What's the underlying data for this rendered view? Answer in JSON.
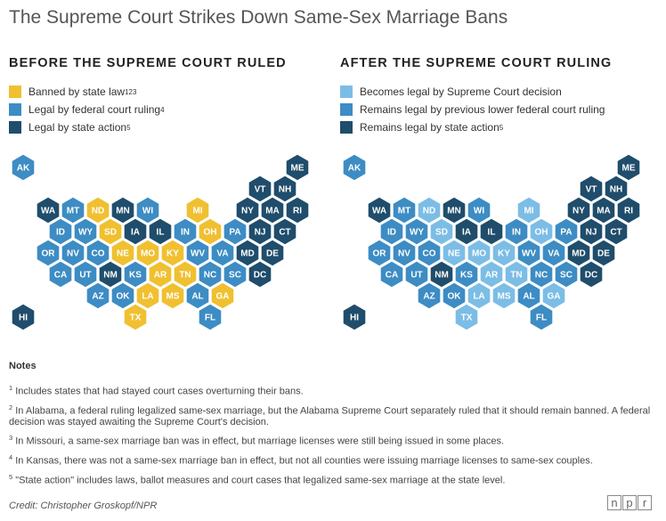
{
  "title": "The Supreme Court Strikes Down Same-Sex Marriage Bans",
  "colors": {
    "yellow": "#f0c030",
    "light_blue": "#7cbde6",
    "mid_blue": "#3d8cc4",
    "dark_blue": "#1f4d6b"
  },
  "before": {
    "heading": "BEFORE THE SUPREME COURT RULED",
    "legend": [
      {
        "label": "Banned by state law",
        "sup": "123",
        "color": "#f0c030"
      },
      {
        "label": "Legal by federal court ruling",
        "sup": "4",
        "color": "#3d8cc4"
      },
      {
        "label": "Legal by state action",
        "sup": "5",
        "color": "#1f4d6b"
      }
    ]
  },
  "after": {
    "heading": "AFTER THE SUPREME COURT RULING",
    "legend": [
      {
        "label": "Becomes legal by Supreme Court decision",
        "sup": "",
        "color": "#7cbde6"
      },
      {
        "label": "Remains legal by previous lower federal court ruling",
        "sup": "",
        "color": "#3d8cc4"
      },
      {
        "label": "Remains legal by state action",
        "sup": "5",
        "color": "#1f4d6b"
      }
    ]
  },
  "chart_data": {
    "type": "hex tile map",
    "categories_before": [
      "Banned by state law",
      "Legal by federal court ruling",
      "Legal by state action"
    ],
    "categories_after": [
      "Becomes legal by Supreme Court decision",
      "Remains legal by previous lower federal court ruling",
      "Remains legal by state action"
    ],
    "states": [
      {
        "abbr": "AK",
        "row": 0,
        "col": 0,
        "before": "federal",
        "after": "federal"
      },
      {
        "abbr": "ME",
        "row": 0,
        "col": 11,
        "before": "state",
        "after": "state"
      },
      {
        "abbr": "VT",
        "row": 1,
        "col": 9.5,
        "before": "state",
        "after": "state"
      },
      {
        "abbr": "NH",
        "row": 1,
        "col": 10.5,
        "before": "state",
        "after": "state"
      },
      {
        "abbr": "WA",
        "row": 2,
        "col": 1,
        "before": "state",
        "after": "state"
      },
      {
        "abbr": "MT",
        "row": 2,
        "col": 2,
        "before": "federal",
        "after": "federal"
      },
      {
        "abbr": "ND",
        "row": 2,
        "col": 3,
        "before": "banned",
        "after": "scotus"
      },
      {
        "abbr": "MN",
        "row": 2,
        "col": 4,
        "before": "state",
        "after": "state"
      },
      {
        "abbr": "WI",
        "row": 2,
        "col": 5,
        "before": "federal",
        "after": "federal"
      },
      {
        "abbr": "MI",
        "row": 2,
        "col": 7,
        "before": "banned",
        "after": "scotus"
      },
      {
        "abbr": "NY",
        "row": 2,
        "col": 9,
        "before": "state",
        "after": "state"
      },
      {
        "abbr": "MA",
        "row": 2,
        "col": 10,
        "before": "state",
        "after": "state"
      },
      {
        "abbr": "RI",
        "row": 2,
        "col": 11,
        "before": "state",
        "after": "state"
      },
      {
        "abbr": "ID",
        "row": 3,
        "col": 1.5,
        "before": "federal",
        "after": "federal"
      },
      {
        "abbr": "WY",
        "row": 3,
        "col": 2.5,
        "before": "federal",
        "after": "federal"
      },
      {
        "abbr": "SD",
        "row": 3,
        "col": 3.5,
        "before": "banned",
        "after": "scotus"
      },
      {
        "abbr": "IA",
        "row": 3,
        "col": 4.5,
        "before": "state",
        "after": "state"
      },
      {
        "abbr": "IL",
        "row": 3,
        "col": 5.5,
        "before": "state",
        "after": "state"
      },
      {
        "abbr": "IN",
        "row": 3,
        "col": 6.5,
        "before": "federal",
        "after": "federal"
      },
      {
        "abbr": "OH",
        "row": 3,
        "col": 7.5,
        "before": "banned",
        "after": "scotus"
      },
      {
        "abbr": "PA",
        "row": 3,
        "col": 8.5,
        "before": "federal",
        "after": "federal"
      },
      {
        "abbr": "NJ",
        "row": 3,
        "col": 9.5,
        "before": "state",
        "after": "state"
      },
      {
        "abbr": "CT",
        "row": 3,
        "col": 10.5,
        "before": "state",
        "after": "state"
      },
      {
        "abbr": "OR",
        "row": 4,
        "col": 1,
        "before": "federal",
        "after": "federal"
      },
      {
        "abbr": "NV",
        "row": 4,
        "col": 2,
        "before": "federal",
        "after": "federal"
      },
      {
        "abbr": "CO",
        "row": 4,
        "col": 3,
        "before": "federal",
        "after": "federal"
      },
      {
        "abbr": "NE",
        "row": 4,
        "col": 4,
        "before": "banned",
        "after": "scotus"
      },
      {
        "abbr": "MO",
        "row": 4,
        "col": 5,
        "before": "banned",
        "after": "scotus"
      },
      {
        "abbr": "KY",
        "row": 4,
        "col": 6,
        "before": "banned",
        "after": "scotus"
      },
      {
        "abbr": "WV",
        "row": 4,
        "col": 7,
        "before": "federal",
        "after": "federal"
      },
      {
        "abbr": "VA",
        "row": 4,
        "col": 8,
        "before": "federal",
        "after": "federal"
      },
      {
        "abbr": "MD",
        "row": 4,
        "col": 9,
        "before": "state",
        "after": "state"
      },
      {
        "abbr": "DE",
        "row": 4,
        "col": 10,
        "before": "state",
        "after": "state"
      },
      {
        "abbr": "CA",
        "row": 5,
        "col": 1.5,
        "before": "federal",
        "after": "federal"
      },
      {
        "abbr": "UT",
        "row": 5,
        "col": 2.5,
        "before": "federal",
        "after": "federal"
      },
      {
        "abbr": "NM",
        "row": 5,
        "col": 3.5,
        "before": "state",
        "after": "state"
      },
      {
        "abbr": "KS",
        "row": 5,
        "col": 4.5,
        "before": "federal",
        "after": "federal"
      },
      {
        "abbr": "AR",
        "row": 5,
        "col": 5.5,
        "before": "banned",
        "after": "scotus"
      },
      {
        "abbr": "TN",
        "row": 5,
        "col": 6.5,
        "before": "banned",
        "after": "scotus"
      },
      {
        "abbr": "NC",
        "row": 5,
        "col": 7.5,
        "before": "federal",
        "after": "federal"
      },
      {
        "abbr": "SC",
        "row": 5,
        "col": 8.5,
        "before": "federal",
        "after": "federal"
      },
      {
        "abbr": "DC",
        "row": 5,
        "col": 9.5,
        "before": "state",
        "after": "state"
      },
      {
        "abbr": "AZ",
        "row": 6,
        "col": 3,
        "before": "federal",
        "after": "federal"
      },
      {
        "abbr": "OK",
        "row": 6,
        "col": 4,
        "before": "federal",
        "after": "federal"
      },
      {
        "abbr": "LA",
        "row": 6,
        "col": 5,
        "before": "banned",
        "after": "scotus"
      },
      {
        "abbr": "MS",
        "row": 6,
        "col": 6,
        "before": "banned",
        "after": "scotus"
      },
      {
        "abbr": "AL",
        "row": 6,
        "col": 7,
        "before": "federal",
        "after": "federal"
      },
      {
        "abbr": "GA",
        "row": 6,
        "col": 8,
        "before": "banned",
        "after": "scotus"
      },
      {
        "abbr": "HI",
        "row": 7,
        "col": 0,
        "before": "state",
        "after": "state"
      },
      {
        "abbr": "TX",
        "row": 7,
        "col": 4.5,
        "before": "banned",
        "after": "scotus"
      },
      {
        "abbr": "FL",
        "row": 7,
        "col": 7.5,
        "before": "federal",
        "after": "federal"
      }
    ]
  },
  "notes": {
    "heading": "Notes",
    "items": [
      {
        "sup": "1",
        "text": "Includes states that had stayed court cases overturning their bans."
      },
      {
        "sup": "2",
        "text": "In Alabama, a federal ruling legalized same-sex marriage, but the Alabama Supreme Court separately ruled that it should remain banned. A federal decision was stayed awaiting the Supreme Court's decision."
      },
      {
        "sup": "3",
        "text": "In Missouri, a same-sex marriage ban was in effect, but marriage licenses were still being issued in some places."
      },
      {
        "sup": "4",
        "text": "In Kansas, there was not a same-sex marriage ban in effect, but not all counties were issuing marriage licenses to same-sex couples."
      },
      {
        "sup": "5",
        "text": "\"State action\" includes laws, ballot measures and court cases that legalized same-sex marriage at the state level."
      }
    ]
  },
  "credit": "Credit: Christopher Groskopf/NPR",
  "logo": [
    "n",
    "p",
    "r"
  ]
}
